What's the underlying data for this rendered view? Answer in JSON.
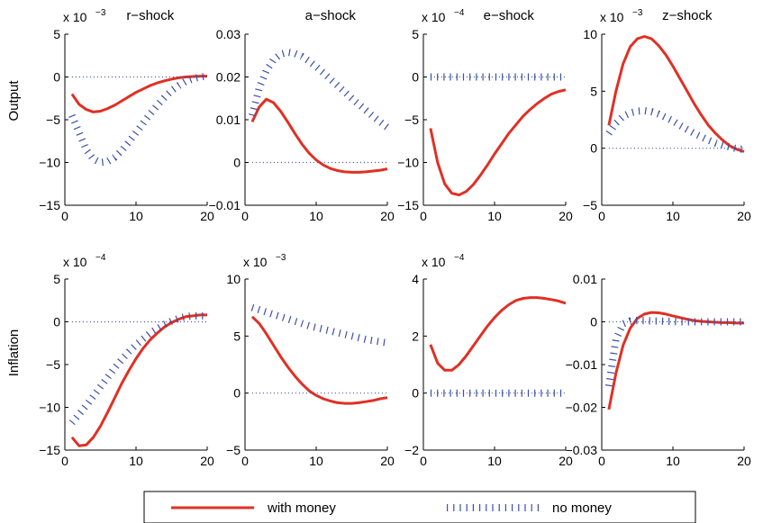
{
  "row_labels": [
    "Output",
    "Inflation"
  ],
  "legend": {
    "items": [
      {
        "label": "with money",
        "color": "#e03024",
        "style": "solid"
      },
      {
        "label": "no money",
        "color": "#3a4fa8",
        "style": "dotted"
      }
    ]
  },
  "chart_data": [
    {
      "type": "line",
      "title": "r−shock",
      "multiplier": "x 10",
      "exponent": "−3",
      "xlim": [
        0,
        20
      ],
      "ylim": [
        -15,
        5
      ],
      "xticks": [
        0,
        10,
        20
      ],
      "xtick_labels": [
        "0",
        "10",
        "20"
      ],
      "yticks": [
        -15,
        -10,
        -5,
        0,
        5
      ],
      "ytick_labels": [
        "−15",
        "−10",
        "−5",
        "0",
        "5"
      ],
      "series": [
        {
          "name": "with money",
          "x": [
            1,
            2,
            3,
            4,
            5,
            6,
            7,
            8,
            9,
            10,
            11,
            12,
            13,
            14,
            15,
            16,
            17,
            18,
            19,
            20
          ],
          "values": [
            -2.0,
            -3.2,
            -3.8,
            -4.1,
            -4.0,
            -3.7,
            -3.3,
            -2.8,
            -2.3,
            -1.8,
            -1.4,
            -1.0,
            -0.7,
            -0.45,
            -0.25,
            -0.1,
            0.0,
            0.05,
            0.1,
            0.1
          ]
        },
        {
          "name": "no money",
          "x": [
            1,
            2,
            3,
            4,
            5,
            6,
            7,
            8,
            9,
            10,
            11,
            12,
            13,
            14,
            15,
            16,
            17,
            18,
            19,
            20
          ],
          "values": [
            -4.5,
            -6.5,
            -8.5,
            -9.6,
            -10.0,
            -9.9,
            -9.4,
            -8.6,
            -7.6,
            -6.5,
            -5.4,
            -4.3,
            -3.3,
            -2.4,
            -1.6,
            -1.0,
            -0.5,
            -0.2,
            0.0,
            0.1
          ]
        },
        {
          "name": "zero",
          "x": [
            1,
            20
          ],
          "values": [
            0,
            0
          ]
        }
      ]
    },
    {
      "type": "line",
      "title": "a−shock",
      "multiplier": "",
      "exponent": "",
      "xlim": [
        0,
        20
      ],
      "ylim": [
        -0.01,
        0.03
      ],
      "xticks": [
        0,
        10,
        20
      ],
      "xtick_labels": [
        "0",
        "10",
        "20"
      ],
      "yticks": [
        -0.01,
        0,
        0.01,
        0.02,
        0.03
      ],
      "ytick_labels": [
        "−0.01",
        "0",
        "0.01",
        "0.02",
        "0.03"
      ],
      "series": [
        {
          "name": "with money",
          "x": [
            1,
            2,
            3,
            4,
            5,
            6,
            7,
            8,
            9,
            10,
            11,
            12,
            13,
            14,
            15,
            16,
            17,
            18,
            19,
            20
          ],
          "values": [
            0.0095,
            0.013,
            0.0148,
            0.014,
            0.012,
            0.0095,
            0.0068,
            0.0043,
            0.0022,
            0.0006,
            -0.0006,
            -0.0014,
            -0.0019,
            -0.0022,
            -0.0023,
            -0.0023,
            -0.0022,
            -0.002,
            -0.0018,
            -0.0015
          ]
        },
        {
          "name": "no money",
          "x": [
            1,
            2,
            3,
            4,
            5,
            6,
            7,
            8,
            9,
            10,
            11,
            12,
            13,
            14,
            15,
            16,
            17,
            18,
            19,
            20
          ],
          "values": [
            0.011,
            0.0175,
            0.0215,
            0.024,
            0.0253,
            0.0258,
            0.0255,
            0.0248,
            0.0237,
            0.0224,
            0.021,
            0.0195,
            0.018,
            0.0165,
            0.015,
            0.0136,
            0.0122,
            0.0108,
            0.0095,
            0.0082
          ]
        },
        {
          "name": "zero",
          "x": [
            1,
            20
          ],
          "values": [
            0,
            0
          ]
        }
      ]
    },
    {
      "type": "line",
      "title": "e−shock",
      "multiplier": "x 10",
      "exponent": "−4",
      "xlim": [
        0,
        20
      ],
      "ylim": [
        -15,
        5
      ],
      "xticks": [
        0,
        10,
        20
      ],
      "xtick_labels": [
        "0",
        "10",
        "20"
      ],
      "yticks": [
        -15,
        -10,
        -5,
        0,
        5
      ],
      "ytick_labels": [
        "−15",
        "−10",
        "−5",
        "0",
        "5"
      ],
      "series": [
        {
          "name": "with money",
          "x": [
            1,
            2,
            3,
            4,
            5,
            6,
            7,
            8,
            9,
            10,
            11,
            12,
            13,
            14,
            15,
            16,
            17,
            18,
            19,
            20
          ],
          "values": [
            -6.0,
            -10.0,
            -12.5,
            -13.6,
            -13.8,
            -13.4,
            -12.6,
            -11.5,
            -10.3,
            -9.0,
            -7.8,
            -6.6,
            -5.6,
            -4.6,
            -3.8,
            -3.1,
            -2.5,
            -2.0,
            -1.7,
            -1.5
          ]
        },
        {
          "name": "no money",
          "x": [
            1,
            2,
            3,
            4,
            5,
            6,
            7,
            8,
            9,
            10,
            11,
            12,
            13,
            14,
            15,
            16,
            17,
            18,
            19,
            20
          ],
          "values": [
            0,
            0,
            0,
            0,
            0,
            0,
            0,
            0,
            0,
            0,
            0,
            0,
            0,
            0,
            0,
            0,
            0,
            0,
            0,
            0
          ]
        },
        {
          "name": "zero",
          "x": [
            1,
            20
          ],
          "values": [
            0,
            0
          ]
        }
      ]
    },
    {
      "type": "line",
      "title": "z−shock",
      "multiplier": "x 10",
      "exponent": "−3",
      "xlim": [
        0,
        20
      ],
      "ylim": [
        -5,
        10
      ],
      "xticks": [
        0,
        10,
        20
      ],
      "xtick_labels": [
        "0",
        "10",
        "20"
      ],
      "yticks": [
        -5,
        0,
        5,
        10
      ],
      "ytick_labels": [
        "−5",
        "0",
        "5",
        "10"
      ],
      "series": [
        {
          "name": "with money",
          "x": [
            1,
            2,
            3,
            4,
            5,
            6,
            7,
            8,
            9,
            10,
            11,
            12,
            13,
            14,
            15,
            16,
            17,
            18,
            19,
            20
          ],
          "values": [
            2.0,
            5.0,
            7.4,
            8.9,
            9.6,
            9.8,
            9.6,
            9.0,
            8.2,
            7.2,
            6.1,
            5.0,
            3.9,
            2.9,
            2.0,
            1.3,
            0.7,
            0.2,
            -0.1,
            -0.3
          ]
        },
        {
          "name": "no money",
          "x": [
            1,
            2,
            3,
            4,
            5,
            6,
            7,
            8,
            9,
            10,
            11,
            12,
            13,
            14,
            15,
            16,
            17,
            18,
            19,
            20
          ],
          "values": [
            1.3,
            2.2,
            2.8,
            3.1,
            3.25,
            3.3,
            3.2,
            3.0,
            2.7,
            2.4,
            2.0,
            1.65,
            1.3,
            1.0,
            0.7,
            0.45,
            0.25,
            0.1,
            -0.05,
            -0.1
          ]
        },
        {
          "name": "zero",
          "x": [
            1,
            20
          ],
          "values": [
            0,
            0
          ]
        }
      ]
    },
    {
      "type": "line",
      "title": "",
      "multiplier": "x 10",
      "exponent": "−4",
      "xlim": [
        0,
        20
      ],
      "ylim": [
        -15,
        5
      ],
      "xticks": [
        0,
        10,
        20
      ],
      "xtick_labels": [
        "0",
        "10",
        "20"
      ],
      "yticks": [
        -15,
        -10,
        -5,
        0,
        5
      ],
      "ytick_labels": [
        "−15",
        "−10",
        "−5",
        "0",
        "5"
      ],
      "series": [
        {
          "name": "with money",
          "x": [
            1,
            2,
            3,
            4,
            5,
            6,
            7,
            8,
            9,
            10,
            11,
            12,
            13,
            14,
            15,
            16,
            17,
            18,
            19,
            20
          ],
          "values": [
            -13.5,
            -14.5,
            -14.4,
            -13.5,
            -12.2,
            -10.6,
            -8.9,
            -7.2,
            -5.7,
            -4.3,
            -3.1,
            -2.1,
            -1.3,
            -0.6,
            -0.1,
            0.3,
            0.6,
            0.7,
            0.8,
            0.8
          ]
        },
        {
          "name": "no money",
          "x": [
            1,
            2,
            3,
            4,
            5,
            6,
            7,
            8,
            9,
            10,
            11,
            12,
            13,
            14,
            15,
            16,
            17,
            18,
            19,
            20
          ],
          "values": [
            -11.8,
            -10.8,
            -9.8,
            -8.7,
            -7.6,
            -6.5,
            -5.4,
            -4.4,
            -3.5,
            -2.7,
            -2.0,
            -1.3,
            -0.8,
            -0.3,
            0.1,
            0.4,
            0.6,
            0.7,
            0.7,
            0.7
          ]
        },
        {
          "name": "zero",
          "x": [
            1,
            20
          ],
          "values": [
            0,
            0
          ]
        }
      ]
    },
    {
      "type": "line",
      "title": "",
      "multiplier": "x 10",
      "exponent": "−3",
      "xlim": [
        0,
        20
      ],
      "ylim": [
        -5,
        10
      ],
      "xticks": [
        0,
        10,
        20
      ],
      "xtick_labels": [
        "0",
        "10",
        "20"
      ],
      "yticks": [
        -5,
        0,
        5,
        10
      ],
      "ytick_labels": [
        "−5",
        "0",
        "5",
        "10"
      ],
      "series": [
        {
          "name": "with money",
          "x": [
            1,
            2,
            3,
            4,
            5,
            6,
            7,
            8,
            9,
            10,
            11,
            12,
            13,
            14,
            15,
            16,
            17,
            18,
            19,
            20
          ],
          "values": [
            6.7,
            6.1,
            5.2,
            4.2,
            3.2,
            2.3,
            1.5,
            0.8,
            0.2,
            -0.2,
            -0.5,
            -0.7,
            -0.85,
            -0.9,
            -0.9,
            -0.85,
            -0.75,
            -0.65,
            -0.5,
            -0.4
          ]
        },
        {
          "name": "no money",
          "x": [
            1,
            2,
            3,
            4,
            5,
            6,
            7,
            8,
            9,
            10,
            11,
            12,
            13,
            14,
            15,
            16,
            17,
            18,
            19,
            20
          ],
          "values": [
            7.5,
            7.3,
            7.1,
            6.9,
            6.7,
            6.5,
            6.3,
            6.1,
            5.9,
            5.75,
            5.6,
            5.45,
            5.3,
            5.15,
            5.0,
            4.85,
            4.7,
            4.6,
            4.5,
            4.4
          ]
        },
        {
          "name": "zero",
          "x": [
            1,
            20
          ],
          "values": [
            0,
            0
          ]
        }
      ]
    },
    {
      "type": "line",
      "title": "",
      "multiplier": "x 10",
      "exponent": "−4",
      "xlim": [
        0,
        20
      ],
      "ylim": [
        -2,
        4
      ],
      "xticks": [
        0,
        10,
        20
      ],
      "xtick_labels": [
        "0",
        "10",
        "20"
      ],
      "yticks": [
        -2,
        0,
        2,
        4
      ],
      "ytick_labels": [
        "−2",
        "0",
        "2",
        "4"
      ],
      "series": [
        {
          "name": "with money",
          "x": [
            1,
            2,
            3,
            4,
            5,
            6,
            7,
            8,
            9,
            10,
            11,
            12,
            13,
            14,
            15,
            16,
            17,
            18,
            19,
            20
          ],
          "values": [
            1.7,
            1.05,
            0.8,
            0.8,
            1.0,
            1.3,
            1.65,
            2.0,
            2.35,
            2.65,
            2.9,
            3.1,
            3.25,
            3.32,
            3.35,
            3.35,
            3.32,
            3.28,
            3.23,
            3.15
          ]
        },
        {
          "name": "no money",
          "x": [
            1,
            2,
            3,
            4,
            5,
            6,
            7,
            8,
            9,
            10,
            11,
            12,
            13,
            14,
            15,
            16,
            17,
            18,
            19,
            20
          ],
          "values": [
            0,
            0,
            0,
            0,
            0,
            0,
            0,
            0,
            0,
            0,
            0,
            0,
            0,
            0,
            0,
            0,
            0,
            0,
            0,
            0
          ]
        },
        {
          "name": "zero",
          "x": [
            1,
            20
          ],
          "values": [
            0,
            0
          ]
        }
      ]
    },
    {
      "type": "line",
      "title": "",
      "multiplier": "",
      "exponent": "",
      "xlim": [
        0,
        20
      ],
      "ylim": [
        -0.03,
        0.01
      ],
      "xticks": [
        0,
        10,
        20
      ],
      "xtick_labels": [
        "0",
        "10",
        "20"
      ],
      "yticks": [
        -0.03,
        -0.02,
        -0.01,
        0,
        0.01
      ],
      "ytick_labels": [
        "−0.03",
        "−0.02",
        "−0.01",
        "0",
        "0.01"
      ],
      "series": [
        {
          "name": "with money",
          "x": [
            1,
            2,
            3,
            4,
            5,
            6,
            7,
            8,
            9,
            10,
            11,
            12,
            13,
            14,
            15,
            16,
            17,
            18,
            19,
            20
          ],
          "values": [
            -0.0205,
            -0.012,
            -0.0055,
            -0.0015,
            0.0008,
            0.0018,
            0.0022,
            0.0021,
            0.0018,
            0.0014,
            0.001,
            0.0006,
            0.0003,
            0.0001,
            0.0,
            -0.0001,
            -0.0002,
            -0.0002,
            -0.0003,
            -0.0003
          ]
        },
        {
          "name": "no money",
          "x": [
            1,
            2,
            3,
            4,
            5,
            6,
            7,
            8,
            9,
            10,
            11,
            12,
            13,
            14,
            15,
            16,
            17,
            18,
            19,
            20
          ],
          "values": [
            -0.015,
            -0.004,
            -0.0005,
            0.0002,
            0.0003,
            0.0003,
            0.0002,
            0.0002,
            0.0001,
            0.0001,
            0.0,
            0.0,
            0.0,
            0.0,
            0.0,
            0.0,
            0.0,
            0.0,
            0.0,
            0.0
          ]
        },
        {
          "name": "zero",
          "x": [
            1,
            20
          ],
          "values": [
            0,
            0
          ]
        }
      ]
    }
  ]
}
